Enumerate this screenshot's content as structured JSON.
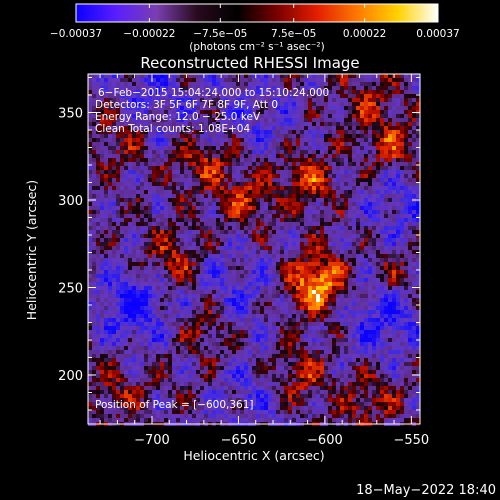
{
  "chart_data": {
    "type": "heatmap",
    "title": "Reconstructed RHESSI Image",
    "xlabel": "Heliocentric X (arcsec)",
    "ylabel": "Heliocentric Y (arcsec)",
    "xlim": [
      -737,
      -545
    ],
    "ylim": [
      172,
      372
    ],
    "x_ticks": [
      -700,
      -650,
      -600,
      -550
    ],
    "x_tick_labels": [
      "−700",
      "−650",
      "−600",
      "−550"
    ],
    "y_ticks": [
      200,
      250,
      300,
      350
    ],
    "y_tick_labels": [
      "200",
      "250",
      "300",
      "350"
    ],
    "colorbar": {
      "range": [
        -0.00037,
        0.00037
      ],
      "ticks": [
        -0.00037,
        -0.00022,
        -7.5e-05,
        7.5e-05,
        0.00022,
        0.00037
      ],
      "tick_labels": [
        "−0.00037",
        "−0.00022",
        "−7.5e−05",
        "7.5e−05",
        "0.00022",
        "0.00037"
      ],
      "units": "(photons cm⁻² s⁻¹ asec⁻²)",
      "colormap": [
        "#0b00ff",
        "#5a1eff",
        "#7a3fb0",
        "#2a0a1e",
        "#000000",
        "#7a0000",
        "#e41e00",
        "#ff7a00",
        "#ffd200",
        "#ffffff"
      ]
    },
    "annotations": [
      "6−Feb−2015 15:04:24.000 to 15:10:24.000",
      "Detectors: 3F 5F 6F 7F 8F 9F, Att 0",
      "Energy Range: 12.0 − 25.0 keV",
      "Clean    Total counts: 1.08E+04"
    ],
    "peak_label": "Position of Peak = [−600,361]",
    "peak": {
      "x": -600,
      "y": 361
    },
    "footer_timestamp": "18−May−2022 18:40",
    "sources": [
      {
        "x": -605,
        "y": 252,
        "intensity": 1.0
      },
      {
        "x": -610,
        "y": 312,
        "intensity": 0.55
      },
      {
        "x": -560,
        "y": 330,
        "intensity": 0.5
      },
      {
        "x": -645,
        "y": 300,
        "intensity": 0.5
      },
      {
        "x": -670,
        "y": 320,
        "intensity": 0.45
      },
      {
        "x": -690,
        "y": 265,
        "intensity": 0.5
      },
      {
        "x": -670,
        "y": 225,
        "intensity": 0.35
      },
      {
        "x": -615,
        "y": 200,
        "intensity": 0.5
      },
      {
        "x": -575,
        "y": 185,
        "intensity": 0.4
      },
      {
        "x": -720,
        "y": 335,
        "intensity": 0.35
      },
      {
        "x": -560,
        "y": 255,
        "intensity": 0.35
      },
      {
        "x": -575,
        "y": 355,
        "intensity": 0.4
      },
      {
        "x": -720,
        "y": 190,
        "intensity": 0.35
      }
    ],
    "negatives": [
      {
        "x": -710,
        "y": 240,
        "intensity": 0.6
      },
      {
        "x": -565,
        "y": 235,
        "intensity": 0.55
      },
      {
        "x": -650,
        "y": 250,
        "intensity": 0.35
      },
      {
        "x": -700,
        "y": 360,
        "intensity": 0.35
      },
      {
        "x": -640,
        "y": 350,
        "intensity": 0.3
      },
      {
        "x": -555,
        "y": 300,
        "intensity": 0.35
      },
      {
        "x": -640,
        "y": 190,
        "intensity": 0.3
      }
    ]
  }
}
